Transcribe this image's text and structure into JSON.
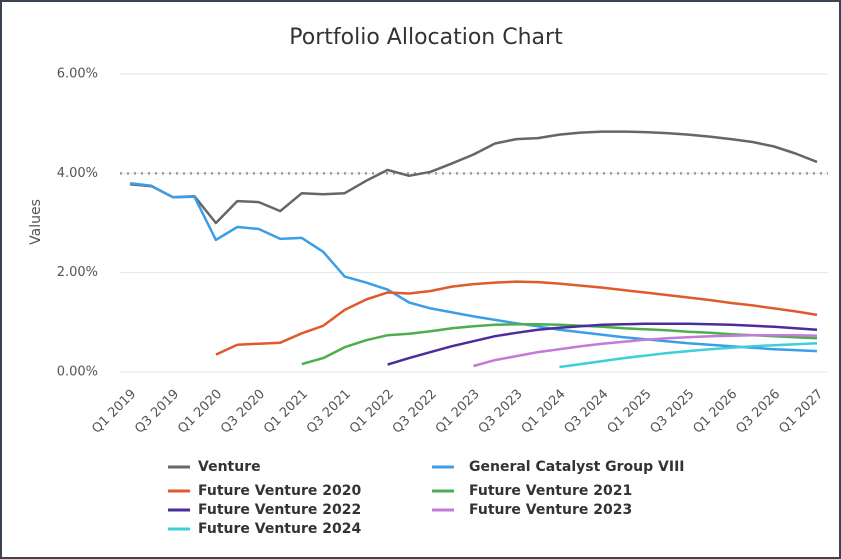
{
  "chart_data": {
    "type": "line",
    "title": "Portfolio Allocation Chart",
    "y_label": "Values",
    "categories": [
      "Q1 2019",
      null,
      "Q3 2019",
      null,
      "Q1 2020",
      null,
      "Q3 2020",
      null,
      "Q1 2021",
      null,
      "Q3 2021",
      null,
      "Q1 2022",
      null,
      "Q3 2022",
      null,
      "Q1 2023",
      null,
      "Q3 2023",
      null,
      "Q1 2024",
      null,
      "Q3 2024",
      null,
      "Q1 2025",
      null,
      "Q3 2025",
      null,
      "Q1 2026",
      null,
      "Q3 2026",
      null,
      "Q1 2027"
    ],
    "ylim": [
      0,
      6
    ],
    "yticks": [
      {
        "value": 0,
        "label": "0.00%"
      },
      {
        "value": 2,
        "label": "2.00%"
      },
      {
        "value": 4,
        "label": "4.00%"
      },
      {
        "value": 6,
        "label": "6.00%"
      }
    ],
    "grid": true,
    "reference_line": 4,
    "legend": "bottom",
    "series": [
      {
        "name": "Venture",
        "color": "#666666",
        "values": [
          3.78,
          3.74,
          3.52,
          3.54,
          3.0,
          3.44,
          3.42,
          3.24,
          3.6,
          3.58,
          3.6,
          3.85,
          4.07,
          3.95,
          4.03,
          4.2,
          4.38,
          4.6,
          4.69,
          4.71,
          4.78,
          4.82,
          4.84,
          4.84,
          4.83,
          4.81,
          4.78,
          4.74,
          4.69,
          4.63,
          4.54,
          4.4,
          4.23
        ]
      },
      {
        "name": "General Catalyst Group VIII",
        "color": "#3a9ee8",
        "values": [
          3.8,
          3.75,
          3.52,
          3.53,
          2.66,
          2.92,
          2.88,
          2.68,
          2.7,
          2.42,
          1.92,
          1.8,
          1.66,
          1.4,
          1.28,
          1.2,
          1.12,
          1.05,
          0.98,
          0.92,
          0.85,
          0.8,
          0.75,
          0.7,
          0.66,
          0.62,
          0.58,
          0.55,
          0.52,
          0.49,
          0.46,
          0.44,
          0.42
        ]
      },
      {
        "name": "Future Venture 2020",
        "color": "#e05a2b",
        "values": [
          null,
          null,
          null,
          null,
          0.35,
          0.55,
          0.57,
          0.59,
          0.78,
          0.93,
          1.25,
          1.46,
          1.6,
          1.58,
          1.63,
          1.72,
          1.77,
          1.8,
          1.82,
          1.81,
          1.78,
          1.74,
          1.7,
          1.65,
          1.6,
          1.55,
          1.5,
          1.45,
          1.39,
          1.34,
          1.28,
          1.22,
          1.15
        ]
      },
      {
        "name": "Future Venture 2021",
        "color": "#4cae4c",
        "values": [
          null,
          null,
          null,
          null,
          null,
          null,
          null,
          null,
          0.16,
          0.28,
          0.5,
          0.64,
          0.74,
          0.77,
          0.82,
          0.88,
          0.92,
          0.95,
          0.96,
          0.96,
          0.95,
          0.93,
          0.91,
          0.88,
          0.86,
          0.84,
          0.81,
          0.79,
          0.76,
          0.74,
          0.72,
          0.7,
          0.68
        ]
      },
      {
        "name": "Future Venture 2022",
        "color": "#4b2c9c",
        "values": [
          null,
          null,
          null,
          null,
          null,
          null,
          null,
          null,
          null,
          null,
          null,
          null,
          0.15,
          0.28,
          0.4,
          0.52,
          0.62,
          0.72,
          0.79,
          0.85,
          0.89,
          0.92,
          0.95,
          0.96,
          0.97,
          0.97,
          0.97,
          0.96,
          0.95,
          0.93,
          0.91,
          0.88,
          0.85
        ]
      },
      {
        "name": "Future Venture 2023",
        "color": "#c27bd6",
        "values": [
          null,
          null,
          null,
          null,
          null,
          null,
          null,
          null,
          null,
          null,
          null,
          null,
          null,
          null,
          null,
          null,
          0.12,
          0.24,
          0.32,
          0.4,
          0.46,
          0.52,
          0.57,
          0.61,
          0.65,
          0.68,
          0.7,
          0.72,
          0.73,
          0.74,
          0.74,
          0.74,
          0.73
        ]
      },
      {
        "name": "Future Venture 2024",
        "color": "#3ecfd8",
        "values": [
          null,
          null,
          null,
          null,
          null,
          null,
          null,
          null,
          null,
          null,
          null,
          null,
          null,
          null,
          null,
          null,
          null,
          null,
          null,
          null,
          0.1,
          0.16,
          0.22,
          0.28,
          0.33,
          0.38,
          0.42,
          0.46,
          0.49,
          0.52,
          0.54,
          0.56,
          0.58
        ]
      }
    ]
  }
}
